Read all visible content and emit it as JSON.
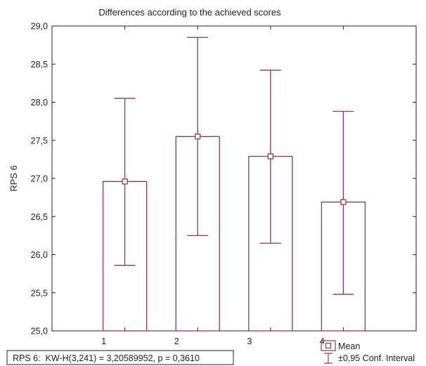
{
  "chart_data": {
    "type": "bar",
    "title": "Differences according to the achieved scores",
    "xlabel": "",
    "ylabel": "RPS 6",
    "categories": [
      "1",
      "2",
      "3",
      "4"
    ],
    "series": [
      {
        "name": "Mean",
        "values": [
          26.96,
          27.55,
          27.29,
          26.69
        ]
      }
    ],
    "conf_low": [
      25.86,
      26.25,
      26.15,
      25.48
    ],
    "conf_high": [
      28.05,
      28.85,
      28.42,
      27.88
    ],
    "ylim": [
      25.0,
      29.0
    ],
    "yticks": [
      "25,0",
      "25,5",
      "26,0",
      "26,5",
      "27,0",
      "27,5",
      "28,0",
      "28,5",
      "29,0"
    ],
    "xlim": [
      0,
      5
    ],
    "grid": false,
    "stats_text": "RPS 6:  KW-H(3,241) = 3,20589952, p = 0,3610",
    "legend": {
      "placement": "bottom-right",
      "items": [
        {
          "label": "Mean",
          "symbol": "square-marker"
        },
        {
          "label": "±0,95 Conf. Interval",
          "symbol": "error-bar"
        }
      ]
    },
    "colors": {
      "bar": "#8b3a4a",
      "axis": "#222222",
      "text": "#222222"
    }
  }
}
